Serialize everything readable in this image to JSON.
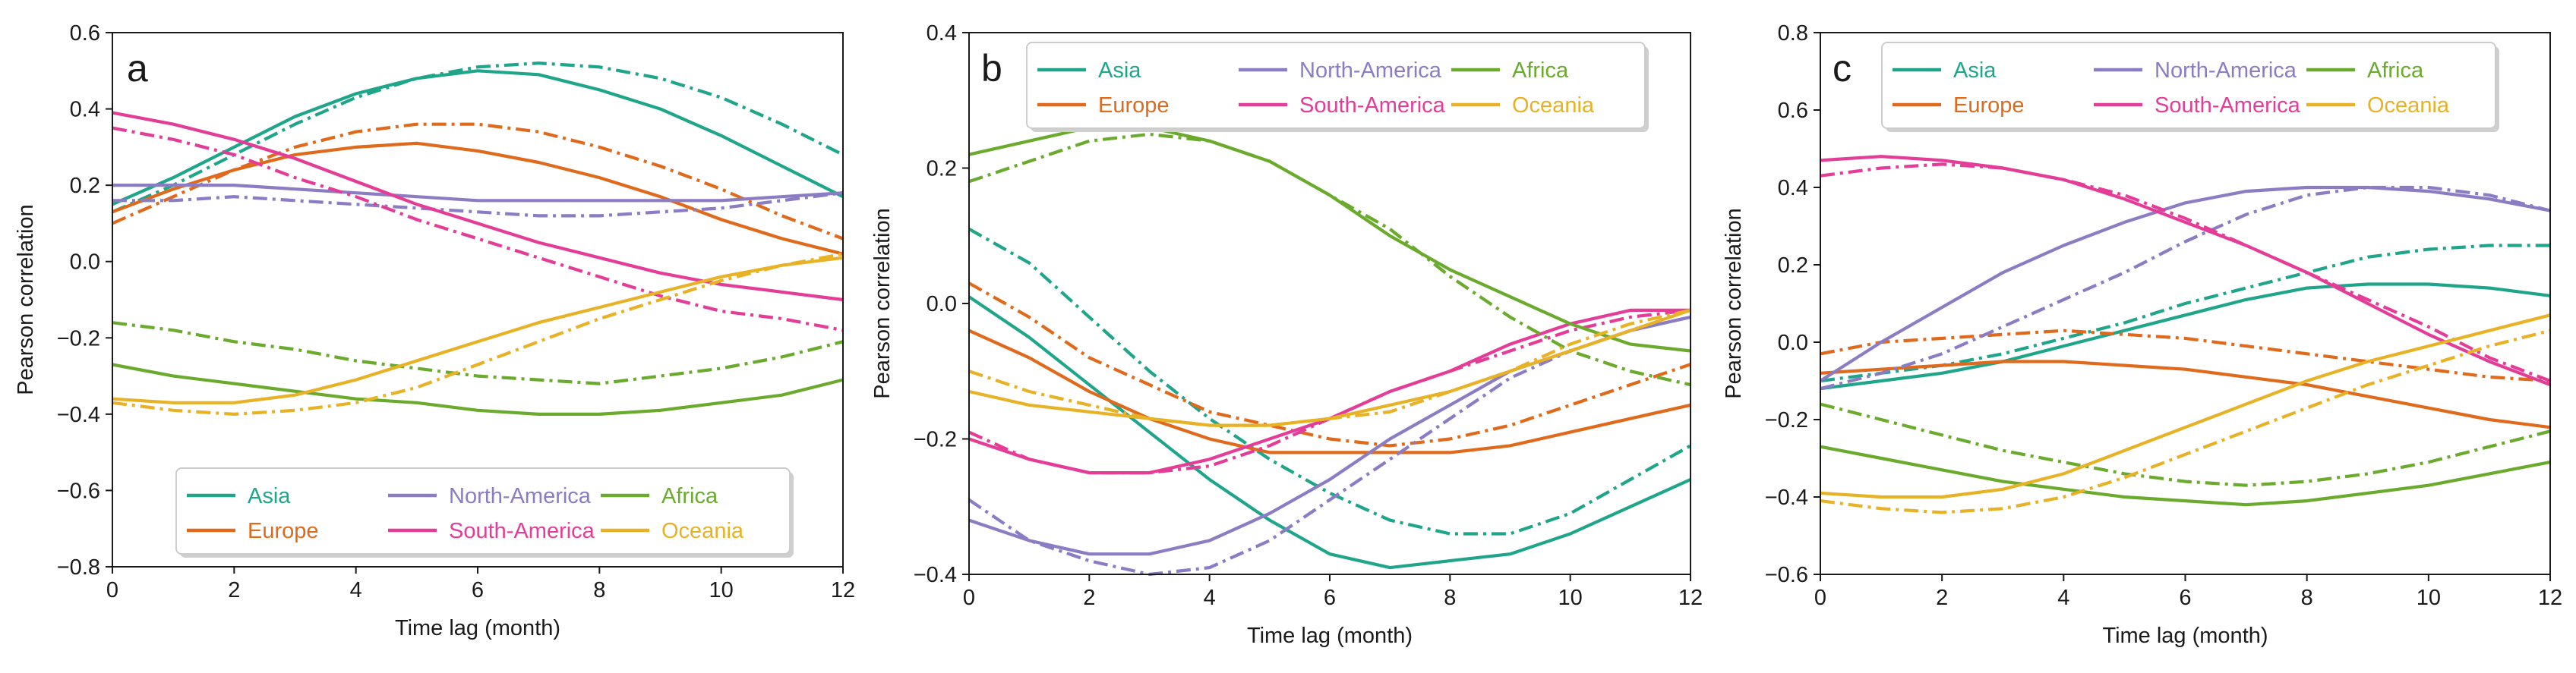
{
  "chart_data": [
    {
      "type": "line",
      "panel_letter": "a",
      "xlabel": "Time lag (month)",
      "ylabel": "Pearson correlation",
      "xlim": [
        0,
        12
      ],
      "ylim": [
        -0.8,
        0.6
      ],
      "xticks": [
        0,
        2,
        4,
        6,
        8,
        10,
        12
      ],
      "yticks": [
        -0.8,
        -0.6,
        -0.4,
        -0.2,
        0.0,
        0.2,
        0.4,
        0.6
      ],
      "ytick_labels": [
        "−0.8",
        "−0.6",
        "−0.4",
        "−0.2",
        "0.0",
        "0.2",
        "0.4",
        "0.6"
      ],
      "legend_position": "lower-center",
      "x": [
        0,
        1,
        2,
        3,
        4,
        5,
        6,
        7,
        8,
        9,
        10,
        11,
        12
      ],
      "series": [
        {
          "name": "Asia",
          "style": "solid",
          "values": [
            0.15,
            0.22,
            0.3,
            0.38,
            0.44,
            0.48,
            0.5,
            0.49,
            0.45,
            0.4,
            0.33,
            0.25,
            0.17
          ]
        },
        {
          "name": "Asia",
          "style": "dashdot",
          "values": [
            0.13,
            0.2,
            0.28,
            0.36,
            0.43,
            0.48,
            0.51,
            0.52,
            0.51,
            0.48,
            0.43,
            0.36,
            0.28
          ]
        },
        {
          "name": "Europe",
          "style": "solid",
          "values": [
            0.13,
            0.19,
            0.24,
            0.28,
            0.3,
            0.31,
            0.29,
            0.26,
            0.22,
            0.17,
            0.11,
            0.06,
            0.02
          ]
        },
        {
          "name": "Europe",
          "style": "dashdot",
          "values": [
            0.1,
            0.17,
            0.24,
            0.3,
            0.34,
            0.36,
            0.36,
            0.34,
            0.3,
            0.25,
            0.19,
            0.12,
            0.06
          ]
        },
        {
          "name": "North-America",
          "style": "solid",
          "values": [
            0.2,
            0.2,
            0.2,
            0.19,
            0.18,
            0.17,
            0.16,
            0.16,
            0.16,
            0.16,
            0.16,
            0.17,
            0.18
          ]
        },
        {
          "name": "North-America",
          "style": "dashdot",
          "values": [
            0.16,
            0.16,
            0.17,
            0.16,
            0.15,
            0.14,
            0.13,
            0.12,
            0.12,
            0.13,
            0.14,
            0.16,
            0.18
          ]
        },
        {
          "name": "South-America",
          "style": "solid",
          "values": [
            0.39,
            0.36,
            0.32,
            0.27,
            0.21,
            0.15,
            0.1,
            0.05,
            0.01,
            -0.03,
            -0.06,
            -0.08,
            -0.1
          ]
        },
        {
          "name": "South-America",
          "style": "dashdot",
          "values": [
            0.35,
            0.32,
            0.28,
            0.22,
            0.17,
            0.11,
            0.06,
            0.01,
            -0.04,
            -0.09,
            -0.13,
            -0.15,
            -0.18
          ]
        },
        {
          "name": "Africa",
          "style": "solid",
          "values": [
            -0.27,
            -0.3,
            -0.32,
            -0.34,
            -0.36,
            -0.37,
            -0.39,
            -0.4,
            -0.4,
            -0.39,
            -0.37,
            -0.35,
            -0.31
          ]
        },
        {
          "name": "Africa",
          "style": "dashdot",
          "values": [
            -0.16,
            -0.18,
            -0.21,
            -0.23,
            -0.26,
            -0.28,
            -0.3,
            -0.31,
            -0.32,
            -0.3,
            -0.28,
            -0.25,
            -0.21
          ]
        },
        {
          "name": "Oceania",
          "style": "solid",
          "values": [
            -0.36,
            -0.37,
            -0.37,
            -0.35,
            -0.31,
            -0.26,
            -0.21,
            -0.16,
            -0.12,
            -0.08,
            -0.04,
            -0.01,
            0.01
          ]
        },
        {
          "name": "Oceania",
          "style": "dashdot",
          "values": [
            -0.37,
            -0.39,
            -0.4,
            -0.39,
            -0.37,
            -0.33,
            -0.27,
            -0.21,
            -0.15,
            -0.1,
            -0.05,
            -0.01,
            0.02
          ]
        }
      ]
    },
    {
      "type": "line",
      "panel_letter": "b",
      "xlabel": "Time lag (month)",
      "ylabel": "Pearson correlation",
      "xlim": [
        0,
        12
      ],
      "ylim": [
        -0.4,
        0.4
      ],
      "xticks": [
        0,
        2,
        4,
        6,
        8,
        10,
        12
      ],
      "yticks": [
        -0.4,
        -0.2,
        0.0,
        0.2,
        0.4
      ],
      "ytick_labels": [
        "−0.4",
        "−0.2",
        "0.0",
        "0.2",
        "0.4"
      ],
      "legend_position": "top-left",
      "x": [
        0,
        1,
        2,
        3,
        4,
        5,
        6,
        7,
        8,
        9,
        10,
        11,
        12
      ],
      "series": [
        {
          "name": "Asia",
          "style": "solid",
          "values": [
            0.01,
            -0.05,
            -0.12,
            -0.19,
            -0.26,
            -0.32,
            -0.37,
            -0.39,
            -0.38,
            -0.37,
            -0.34,
            -0.3,
            -0.26
          ]
        },
        {
          "name": "Asia",
          "style": "dashdot",
          "values": [
            0.11,
            0.06,
            -0.02,
            -0.1,
            -0.17,
            -0.23,
            -0.28,
            -0.32,
            -0.34,
            -0.34,
            -0.31,
            -0.26,
            -0.21
          ]
        },
        {
          "name": "Europe",
          "style": "solid",
          "values": [
            -0.04,
            -0.08,
            -0.13,
            -0.17,
            -0.2,
            -0.22,
            -0.22,
            -0.22,
            -0.22,
            -0.21,
            -0.19,
            -0.17,
            -0.15
          ]
        },
        {
          "name": "Europe",
          "style": "dashdot",
          "values": [
            0.03,
            -0.02,
            -0.08,
            -0.12,
            -0.16,
            -0.18,
            -0.2,
            -0.21,
            -0.2,
            -0.18,
            -0.15,
            -0.12,
            -0.09
          ]
        },
        {
          "name": "North-America",
          "style": "solid",
          "values": [
            -0.32,
            -0.35,
            -0.37,
            -0.37,
            -0.35,
            -0.31,
            -0.26,
            -0.2,
            -0.15,
            -0.1,
            -0.07,
            -0.04,
            -0.02
          ]
        },
        {
          "name": "North-America",
          "style": "dashdot",
          "values": [
            -0.29,
            -0.35,
            -0.38,
            -0.4,
            -0.39,
            -0.35,
            -0.29,
            -0.23,
            -0.17,
            -0.11,
            -0.07,
            -0.04,
            -0.02
          ]
        },
        {
          "name": "South-America",
          "style": "solid",
          "values": [
            -0.2,
            -0.23,
            -0.25,
            -0.25,
            -0.23,
            -0.2,
            -0.17,
            -0.13,
            -0.1,
            -0.06,
            -0.03,
            -0.01,
            -0.01
          ]
        },
        {
          "name": "South-America",
          "style": "dashdot",
          "values": [
            -0.19,
            -0.23,
            -0.25,
            -0.25,
            -0.24,
            -0.21,
            -0.17,
            -0.13,
            -0.1,
            -0.07,
            -0.04,
            -0.02,
            -0.01
          ]
        },
        {
          "name": "Africa",
          "style": "solid",
          "values": [
            0.22,
            0.24,
            0.26,
            0.26,
            0.24,
            0.21,
            0.16,
            0.1,
            0.05,
            0.01,
            -0.03,
            -0.06,
            -0.07
          ]
        },
        {
          "name": "Africa",
          "style": "dashdot",
          "values": [
            0.18,
            0.21,
            0.24,
            0.25,
            0.24,
            0.21,
            0.16,
            0.11,
            0.04,
            -0.02,
            -0.07,
            -0.1,
            -0.12
          ]
        },
        {
          "name": "Oceania",
          "style": "solid",
          "values": [
            -0.13,
            -0.15,
            -0.16,
            -0.17,
            -0.18,
            -0.18,
            -0.17,
            -0.15,
            -0.13,
            -0.1,
            -0.07,
            -0.04,
            -0.01
          ]
        },
        {
          "name": "Oceania",
          "style": "dashdot",
          "values": [
            -0.1,
            -0.13,
            -0.15,
            -0.17,
            -0.18,
            -0.18,
            -0.17,
            -0.16,
            -0.13,
            -0.1,
            -0.06,
            -0.03,
            -0.01
          ]
        }
      ]
    },
    {
      "type": "line",
      "panel_letter": "c",
      "xlabel": "Time lag (month)",
      "ylabel": "Pearson correlation",
      "xlim": [
        0,
        12
      ],
      "ylim": [
        -0.6,
        0.8
      ],
      "xticks": [
        0,
        2,
        4,
        6,
        8,
        10,
        12
      ],
      "yticks": [
        -0.6,
        -0.4,
        -0.2,
        0.0,
        0.2,
        0.4,
        0.6,
        0.8
      ],
      "ytick_labels": [
        "−0.6",
        "−0.4",
        "−0.2",
        "0.0",
        "0.2",
        "0.4",
        "0.6",
        "0.8"
      ],
      "legend_position": "top-center",
      "x": [
        0,
        1,
        2,
        3,
        4,
        5,
        6,
        7,
        8,
        9,
        10,
        11,
        12
      ],
      "series": [
        {
          "name": "Asia",
          "style": "solid",
          "values": [
            -0.12,
            -0.1,
            -0.08,
            -0.05,
            -0.01,
            0.03,
            0.07,
            0.11,
            0.14,
            0.15,
            0.15,
            0.14,
            0.12
          ]
        },
        {
          "name": "Asia",
          "style": "dashdot",
          "values": [
            -0.1,
            -0.08,
            -0.06,
            -0.03,
            0.01,
            0.05,
            0.1,
            0.14,
            0.18,
            0.22,
            0.24,
            0.25,
            0.25
          ]
        },
        {
          "name": "Europe",
          "style": "solid",
          "values": [
            -0.08,
            -0.07,
            -0.06,
            -0.05,
            -0.05,
            -0.06,
            -0.07,
            -0.09,
            -0.11,
            -0.14,
            -0.17,
            -0.2,
            -0.22
          ]
        },
        {
          "name": "Europe",
          "style": "dashdot",
          "values": [
            -0.03,
            0.0,
            0.01,
            0.02,
            0.03,
            0.02,
            0.01,
            -0.01,
            -0.03,
            -0.05,
            -0.07,
            -0.09,
            -0.1
          ]
        },
        {
          "name": "North-America",
          "style": "solid",
          "values": [
            -0.1,
            0.0,
            0.09,
            0.18,
            0.25,
            0.31,
            0.36,
            0.39,
            0.4,
            0.4,
            0.39,
            0.37,
            0.34
          ]
        },
        {
          "name": "North-America",
          "style": "dashdot",
          "values": [
            -0.12,
            -0.08,
            -0.03,
            0.04,
            0.11,
            0.18,
            0.26,
            0.33,
            0.38,
            0.4,
            0.4,
            0.38,
            0.34
          ]
        },
        {
          "name": "South-America",
          "style": "solid",
          "values": [
            0.47,
            0.48,
            0.47,
            0.45,
            0.42,
            0.37,
            0.31,
            0.25,
            0.18,
            0.1,
            0.02,
            -0.05,
            -0.11
          ]
        },
        {
          "name": "South-America",
          "style": "dashdot",
          "values": [
            0.43,
            0.45,
            0.46,
            0.45,
            0.42,
            0.38,
            0.32,
            0.25,
            0.18,
            0.11,
            0.04,
            -0.04,
            -0.1
          ]
        },
        {
          "name": "Africa",
          "style": "solid",
          "values": [
            -0.27,
            -0.3,
            -0.33,
            -0.36,
            -0.38,
            -0.4,
            -0.41,
            -0.42,
            -0.41,
            -0.39,
            -0.37,
            -0.34,
            -0.31
          ]
        },
        {
          "name": "Africa",
          "style": "dashdot",
          "values": [
            -0.16,
            -0.2,
            -0.24,
            -0.28,
            -0.31,
            -0.34,
            -0.36,
            -0.37,
            -0.36,
            -0.34,
            -0.31,
            -0.27,
            -0.23
          ]
        },
        {
          "name": "Oceania",
          "style": "solid",
          "values": [
            -0.39,
            -0.4,
            -0.4,
            -0.38,
            -0.34,
            -0.28,
            -0.22,
            -0.16,
            -0.1,
            -0.05,
            -0.01,
            0.03,
            0.07
          ]
        },
        {
          "name": "Oceania",
          "style": "dashdot",
          "values": [
            -0.41,
            -0.43,
            -0.44,
            -0.43,
            -0.4,
            -0.35,
            -0.29,
            -0.23,
            -0.17,
            -0.11,
            -0.06,
            -0.01,
            0.03
          ]
        }
      ]
    }
  ],
  "legend": {
    "entries": [
      {
        "name": "Asia",
        "color": "#1fa58a"
      },
      {
        "name": "North-America",
        "color": "#8b7cc3"
      },
      {
        "name": "Africa",
        "color": "#6aaa2c"
      },
      {
        "name": "Europe",
        "color": "#e06a1c"
      },
      {
        "name": "South-America",
        "color": "#e43d97"
      },
      {
        "name": "Oceania",
        "color": "#e7b226"
      }
    ]
  },
  "colors": {
    "Asia": "#1fa58a",
    "Europe": "#e06a1c",
    "North-America": "#8b7cc3",
    "South-America": "#e43d97",
    "Africa": "#6aaa2c",
    "Oceania": "#e7b226"
  }
}
